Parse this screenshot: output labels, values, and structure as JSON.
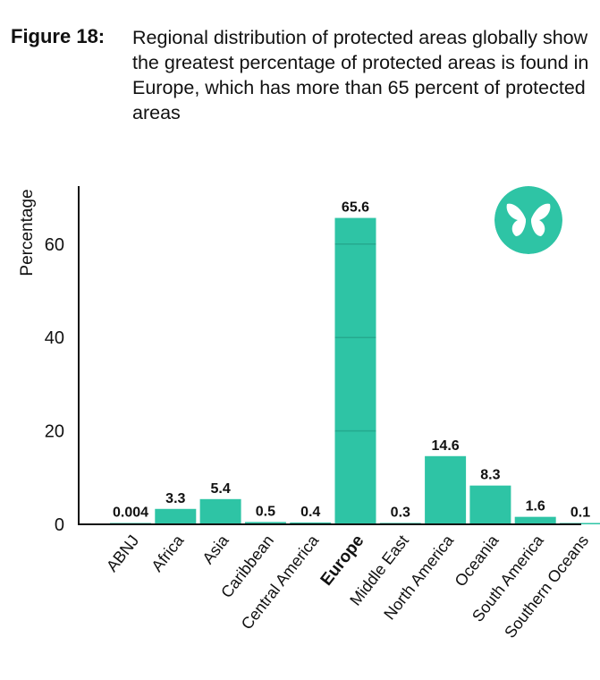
{
  "caption": {
    "label": "Figure 18:",
    "text": "Regional distribution of protected areas globally show the greatest percentage of protected areas is found in Europe, which has more than 65 percent of protected areas"
  },
  "colors": {
    "bar": "#2ec4a5",
    "logo_bg": "#2ec4a5",
    "axis": "#111111"
  },
  "logo": {
    "icon": "butterfly-icon"
  },
  "chart_data": {
    "type": "bar",
    "categories": [
      "ABNJ",
      "Africa",
      "Asia",
      "Caribbean",
      "Central America",
      "Europe",
      "Middle East",
      "North America",
      "Oceania",
      "South America",
      "Southern Oceans"
    ],
    "values": [
      0.004,
      3.3,
      5.4,
      0.5,
      0.4,
      65.6,
      0.3,
      14.6,
      8.3,
      1.6,
      0.1
    ],
    "value_labels": [
      "0.004",
      "3.3",
      "5.4",
      "0.5",
      "0.4",
      "65.6",
      "0.3",
      "14.6",
      "8.3",
      "1.6",
      "0.1"
    ],
    "ylabel": "Percentage",
    "xlabel": "",
    "yticks": [
      0,
      20,
      40,
      60
    ],
    "ylim": [
      0,
      72
    ],
    "highlight": "Europe",
    "grid": false
  }
}
